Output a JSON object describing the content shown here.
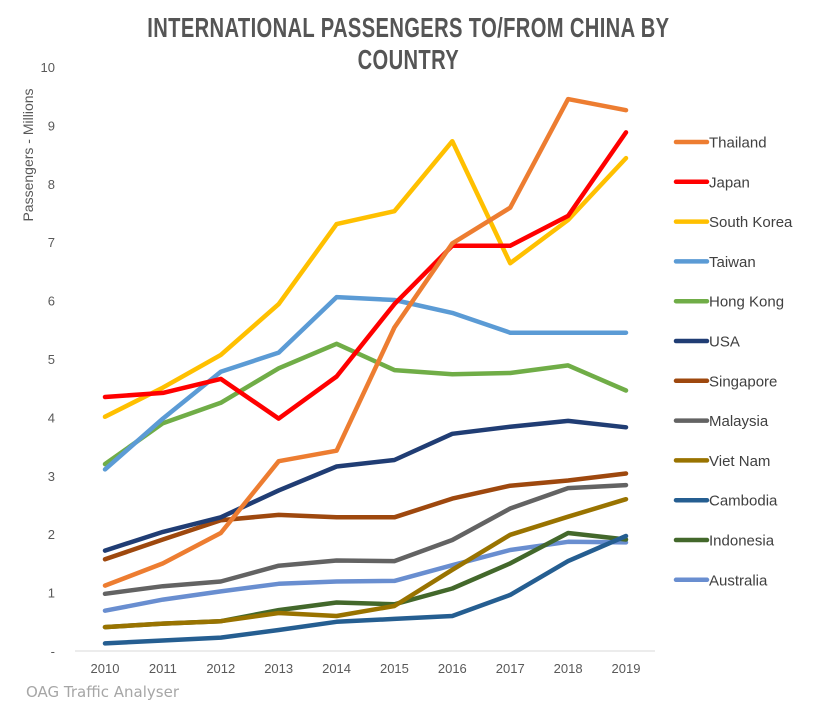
{
  "chart_data": {
    "type": "line",
    "title": "INTERNATIONAL PASSENGERS TO/FROM CHINA BY COUNTRY",
    "xlabel": "",
    "ylabel": "Passengers - Millions",
    "x": [
      "2010",
      "2011",
      "2012",
      "2013",
      "2014",
      "2015",
      "2016",
      "2017",
      "2018",
      "2019"
    ],
    "ylim": [
      0,
      10
    ],
    "yticks": [
      {
        "value": 0,
        "label": "-"
      },
      {
        "value": 1,
        "label": "1"
      },
      {
        "value": 2,
        "label": "2"
      },
      {
        "value": 3,
        "label": "3"
      },
      {
        "value": 4,
        "label": "4"
      },
      {
        "value": 5,
        "label": "5"
      },
      {
        "value": 6,
        "label": "6"
      },
      {
        "value": 7,
        "label": "7"
      },
      {
        "value": 8,
        "label": "8"
      },
      {
        "value": 9,
        "label": "9"
      },
      {
        "value": 10,
        "label": "10"
      }
    ],
    "grid": false,
    "legend_position": "right",
    "series": [
      {
        "name": "Thailand",
        "color": "#ED7D31",
        "values": [
          1.12,
          1.5,
          2.02,
          3.25,
          3.43,
          5.54,
          6.98,
          7.59,
          9.45,
          9.26
        ]
      },
      {
        "name": "Japan",
        "color": "#FF0000",
        "values": [
          4.35,
          4.42,
          4.66,
          3.98,
          4.7,
          5.94,
          6.94,
          6.94,
          7.45,
          8.88
        ]
      },
      {
        "name": "South Korea",
        "color": "#FFC000",
        "values": [
          4.01,
          4.51,
          5.07,
          5.94,
          7.31,
          7.53,
          8.73,
          6.64,
          7.38,
          8.44
        ]
      },
      {
        "name": "Taiwan",
        "color": "#5B9BD5",
        "values": [
          3.11,
          3.98,
          4.78,
          5.11,
          6.06,
          6.01,
          5.79,
          5.45,
          5.45,
          5.45
        ]
      },
      {
        "name": "Hong Kong",
        "color": "#70AD47",
        "values": [
          3.2,
          3.9,
          4.25,
          4.84,
          5.26,
          4.81,
          4.74,
          4.76,
          4.89,
          4.46
        ]
      },
      {
        "name": "USA",
        "color": "#203D74",
        "values": [
          1.72,
          2.04,
          2.29,
          2.75,
          3.16,
          3.27,
          3.72,
          3.84,
          3.94,
          3.83
        ]
      },
      {
        "name": "Singapore",
        "color": "#9E480E",
        "values": [
          1.57,
          1.91,
          2.24,
          2.33,
          2.29,
          2.29,
          2.61,
          2.83,
          2.92,
          3.04
        ]
      },
      {
        "name": "Malaysia",
        "color": "#636363",
        "values": [
          0.98,
          1.11,
          1.19,
          1.46,
          1.55,
          1.54,
          1.9,
          2.44,
          2.79,
          2.84
        ]
      },
      {
        "name": "Viet Nam",
        "color": "#997300",
        "values": [
          0.41,
          0.47,
          0.51,
          0.65,
          0.6,
          0.77,
          1.39,
          1.99,
          2.3,
          2.6
        ]
      },
      {
        "name": "Cambodia",
        "color": "#255E91",
        "values": [
          0.13,
          0.18,
          0.23,
          0.36,
          0.5,
          0.55,
          0.6,
          0.96,
          1.54,
          1.97
        ]
      },
      {
        "name": "Indonesia",
        "color": "#43682B",
        "values": [
          0.41,
          0.47,
          0.51,
          0.7,
          0.83,
          0.8,
          1.07,
          1.5,
          2.02,
          1.91
        ]
      },
      {
        "name": "Australia",
        "color": "#698ED0",
        "values": [
          0.69,
          0.88,
          1.02,
          1.15,
          1.19,
          1.2,
          1.47,
          1.73,
          1.87,
          1.86
        ]
      }
    ]
  },
  "footer": {
    "source": "OAG Traffic Analyser"
  }
}
